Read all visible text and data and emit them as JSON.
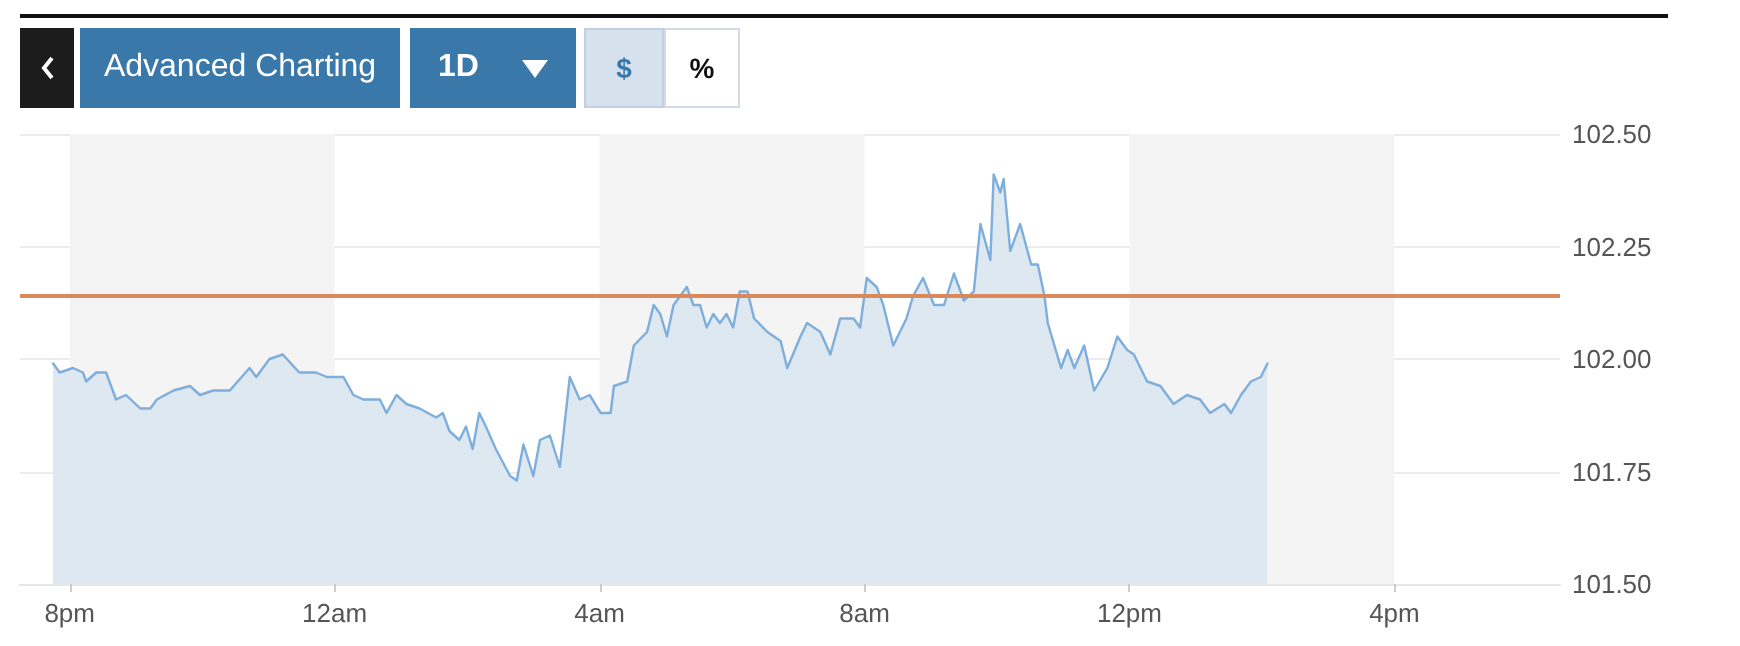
{
  "chart_data": {
    "type": "area",
    "annotations": [
      "Advanced Charting",
      "1D",
      "$",
      "%"
    ],
    "xlim": [
      "--01-01T19:15",
      "--01-02T18:30"
    ],
    "xticks": [
      {
        "value": "--01-01T20:00",
        "label": "8pm"
      },
      {
        "value": "--01-02T00:00",
        "label": "12am"
      },
      {
        "value": "--01-02T04:00",
        "label": "4am"
      },
      {
        "value": "--01-02T08:00",
        "label": "8am"
      },
      {
        "value": "--01-02T12:00",
        "label": "12pm"
      },
      {
        "value": "--01-02T16:00",
        "label": "4pm"
      }
    ],
    "ylim": [
      101.5,
      102.5
    ],
    "yticks": [
      {
        "value": 101.5,
        "label": "101.50"
      },
      {
        "value": 101.75,
        "label": "101.75"
      },
      {
        "value": 102,
        "label": "102.00"
      },
      {
        "value": 102.25,
        "label": "102.25"
      },
      {
        "value": 102.5,
        "label": "102.50"
      }
    ],
    "grid": "y",
    "marker": "none",
    "line_style": "solid",
    "ref_lines": [
      {
        "axis": "y",
        "value": 102.14,
        "color": "#d9895a"
      }
    ],
    "bands": [
      {
        "axis": "x",
        "from": "--01-01T20:00",
        "to": "--01-02T00:00",
        "color": "#f4f4f4"
      },
      {
        "axis": "x",
        "from": "--01-02T04:00",
        "to": "--01-02T08:00",
        "color": "#f4f4f4"
      },
      {
        "axis": "x",
        "from": "--01-02T12:00",
        "to": "--01-02T16:00",
        "color": "#f4f4f4"
      }
    ],
    "series": [
      {
        "color": "#7eaedc",
        "x": [
          "--01-01T19:45",
          "--01-01T19:51",
          "--01-01T20:03",
          "--01-01T20:12",
          "--01-01T20:15",
          "--01-01T20:24",
          "--01-01T20:33",
          "--01-01T20:42",
          "--01-01T20:51",
          "--01-01T21:04",
          "--01-01T21:13",
          "--01-01T21:19",
          "--01-01T21:34",
          "--01-01T21:49",
          "--01-01T21:58",
          "--01-01T22:10",
          "--01-01T22:25",
          "--01-01T22:43",
          "--01-01T22:49",
          "--01-01T23:01",
          "--01-01T23:13",
          "--01-01T23:28",
          "--01-01T23:43",
          "--01-01T23:53",
          "--01-02T00:08",
          "--01-02T00:17",
          "--01-02T00:26",
          "--01-02T00:41",
          "--01-02T00:47",
          "--01-02T00:56",
          "--01-02T01:05",
          "--01-02T01:17",
          "--01-02T01:32",
          "--01-02T01:38",
          "--01-02T01:44",
          "--01-02T01:53",
          "--01-02T01:59",
          "--01-02T02:05",
          "--01-02T02:11",
          "--01-02T02:17",
          "--01-02T02:26",
          "--01-02T02:39",
          "--01-02T02:45",
          "--01-02T02:51",
          "--01-02T03:00",
          "--01-02T03:06",
          "--01-02T03:15",
          "--01-02T03:24",
          "--01-02T03:33",
          "--01-02T03:42",
          "--01-02T03:51",
          "--01-02T04:01",
          "--01-02T04:10",
          "--01-02T04:13",
          "--01-02T04:25",
          "--01-02T04:31",
          "--01-02T04:43",
          "--01-02T04:49",
          "--01-02T04:55",
          "--01-02T05:01",
          "--01-02T05:07",
          "--01-02T05:19",
          "--01-02T05:25",
          "--01-02T05:31",
          "--01-02T05:37",
          "--01-02T05:43",
          "--01-02T05:49",
          "--01-02T05:55",
          "--01-02T06:01",
          "--01-02T06:07",
          "--01-02T06:14",
          "--01-02T06:20",
          "--01-02T06:32",
          "--01-02T06:44",
          "--01-02T06:50",
          "--01-02T07:02",
          "--01-02T07:08",
          "--01-02T07:20",
          "--01-02T07:29",
          "--01-02T07:38",
          "--01-02T07:50",
          "--01-02T07:56",
          "--01-02T08:02",
          "--01-02T08:11",
          "--01-02T08:17",
          "--01-02T08:26",
          "--01-02T08:38",
          "--01-02T08:44",
          "--01-02T08:53",
          "--01-02T09:03",
          "--01-02T09:12",
          "--01-02T09:21",
          "--01-02T09:30",
          "--01-02T09:39",
          "--01-02T09:45",
          "--01-02T09:54",
          "--01-02T09:57",
          "--01-02T10:03",
          "--01-02T10:06",
          "--01-02T10:12",
          "--01-02T10:21",
          "--01-02T10:31",
          "--01-02T10:37",
          "--01-02T10:43",
          "--01-02T10:46",
          "--01-02T10:58",
          "--01-02T11:04",
          "--01-02T11:10",
          "--01-02T11:19",
          "--01-02T11:28",
          "--01-02T11:40",
          "--01-02T11:49",
          "--01-02T11:58",
          "--01-02T12:04",
          "--01-02T12:16",
          "--01-02T12:28",
          "--01-02T12:40",
          "--01-02T12:52",
          "--01-02T13:04",
          "--01-02T13:13",
          "--01-02T13:26",
          "--01-02T13:32",
          "--01-02T13:41",
          "--01-02T13:50",
          "--01-02T13:59",
          "--01-02T14:05"
        ],
        "values": [
          101.99,
          101.97,
          101.98,
          101.97,
          101.95,
          101.97,
          101.97,
          101.91,
          101.92,
          101.89,
          101.89,
          101.91,
          101.93,
          101.94,
          101.92,
          101.93,
          101.93,
          101.98,
          101.96,
          102.0,
          102.01,
          101.97,
          101.97,
          101.96,
          101.96,
          101.92,
          101.91,
          101.91,
          101.88,
          101.92,
          101.9,
          101.89,
          101.87,
          101.88,
          101.84,
          101.82,
          101.85,
          101.8,
          101.88,
          101.85,
          101.8,
          101.74,
          101.73,
          101.81,
          101.74,
          101.82,
          101.83,
          101.76,
          101.96,
          101.91,
          101.92,
          101.88,
          101.88,
          101.94,
          101.95,
          102.03,
          102.06,
          102.12,
          102.1,
          102.05,
          102.12,
          102.16,
          102.12,
          102.12,
          102.07,
          102.1,
          102.08,
          102.1,
          102.07,
          102.15,
          102.15,
          102.09,
          102.06,
          102.04,
          101.98,
          102.05,
          102.08,
          102.06,
          102.01,
          102.09,
          102.09,
          102.07,
          102.18,
          102.16,
          102.12,
          102.03,
          102.09,
          102.14,
          102.18,
          102.12,
          102.12,
          102.19,
          102.13,
          102.15,
          102.3,
          102.22,
          102.41,
          102.37,
          102.4,
          102.24,
          102.3,
          102.21,
          102.21,
          102.14,
          102.08,
          101.98,
          102.02,
          101.98,
          102.03,
          101.93,
          101.98,
          102.05,
          102.02,
          102.01,
          101.95,
          101.94,
          101.9,
          101.92,
          101.91,
          101.88,
          101.9,
          101.88,
          101.92,
          101.95,
          101.96,
          101.99
        ]
      }
    ]
  }
}
